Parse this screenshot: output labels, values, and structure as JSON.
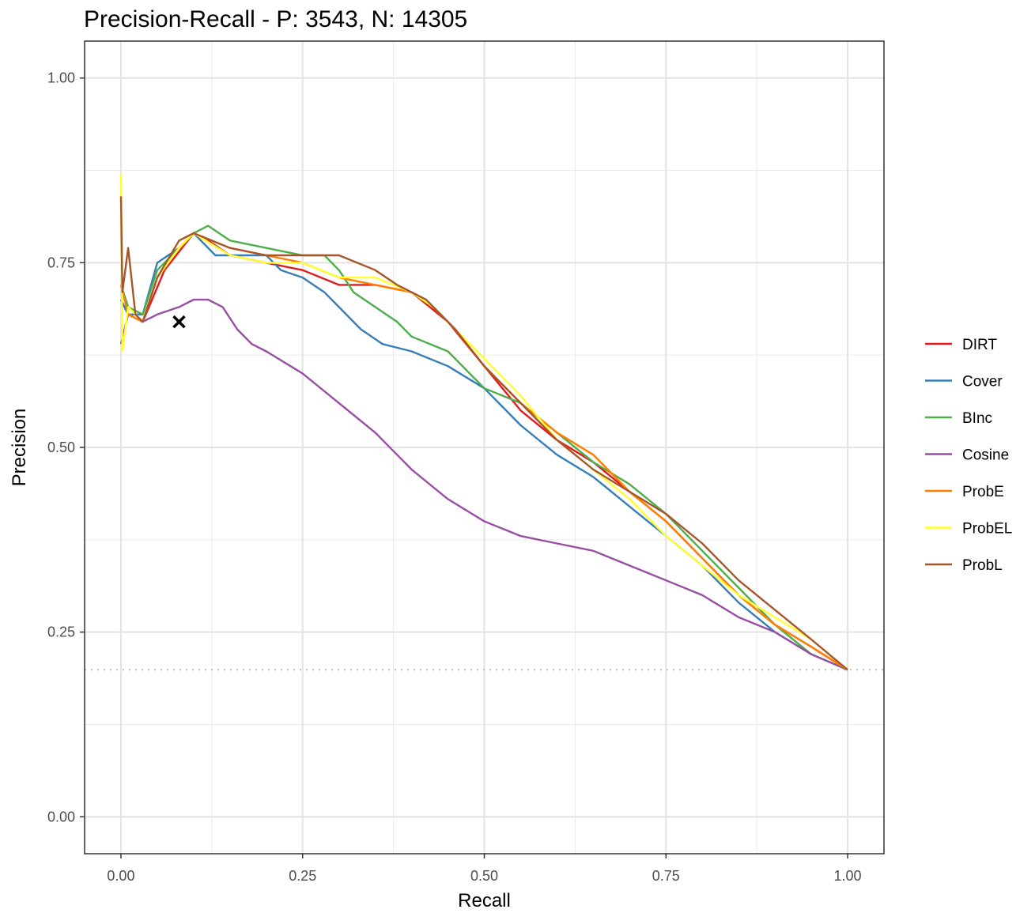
{
  "chart_data": {
    "type": "line",
    "title": "Precision-Recall - P: 3543, N: 14305",
    "xlabel": "Recall",
    "ylabel": "Precision",
    "xlim": [
      -0.05,
      1.05
    ],
    "ylim": [
      -0.05,
      1.05
    ],
    "x_ticks": [
      "0.00",
      "0.25",
      "0.50",
      "0.75",
      "1.00"
    ],
    "y_ticks": [
      "0.00",
      "0.25",
      "0.50",
      "0.75",
      "1.00"
    ],
    "grid": true,
    "legend_position": "right",
    "baseline_precision": 0.199,
    "marker": {
      "x": 0.08,
      "y": 0.67,
      "symbol": "x"
    },
    "series": [
      {
        "name": "DIRT",
        "color": "#e41a1c",
        "points": [
          [
            0.0,
            0.7
          ],
          [
            0.01,
            0.68
          ],
          [
            0.03,
            0.67
          ],
          [
            0.06,
            0.74
          ],
          [
            0.1,
            0.79
          ],
          [
            0.12,
            0.78
          ],
          [
            0.15,
            0.76
          ],
          [
            0.2,
            0.75
          ],
          [
            0.25,
            0.74
          ],
          [
            0.3,
            0.72
          ],
          [
            0.35,
            0.72
          ],
          [
            0.4,
            0.71
          ],
          [
            0.45,
            0.67
          ],
          [
            0.5,
            0.61
          ],
          [
            0.55,
            0.55
          ],
          [
            0.6,
            0.51
          ],
          [
            0.65,
            0.48
          ],
          [
            0.7,
            0.44
          ],
          [
            0.75,
            0.4
          ],
          [
            0.8,
            0.35
          ],
          [
            0.85,
            0.3
          ],
          [
            0.9,
            0.26
          ],
          [
            0.95,
            0.23
          ],
          [
            1.0,
            0.199
          ]
        ]
      },
      {
        "name": "Cover",
        "color": "#377eb8",
        "points": [
          [
            0.0,
            0.7
          ],
          [
            0.01,
            0.68
          ],
          [
            0.03,
            0.68
          ],
          [
            0.05,
            0.75
          ],
          [
            0.08,
            0.77
          ],
          [
            0.1,
            0.79
          ],
          [
            0.13,
            0.76
          ],
          [
            0.15,
            0.76
          ],
          [
            0.2,
            0.76
          ],
          [
            0.22,
            0.74
          ],
          [
            0.25,
            0.73
          ],
          [
            0.28,
            0.71
          ],
          [
            0.3,
            0.69
          ],
          [
            0.33,
            0.66
          ],
          [
            0.36,
            0.64
          ],
          [
            0.4,
            0.63
          ],
          [
            0.45,
            0.61
          ],
          [
            0.5,
            0.58
          ],
          [
            0.55,
            0.53
          ],
          [
            0.6,
            0.49
          ],
          [
            0.65,
            0.46
          ],
          [
            0.7,
            0.42
          ],
          [
            0.75,
            0.38
          ],
          [
            0.8,
            0.34
          ],
          [
            0.85,
            0.29
          ],
          [
            0.9,
            0.25
          ],
          [
            0.95,
            0.22
          ],
          [
            1.0,
            0.199
          ]
        ]
      },
      {
        "name": "BInc",
        "color": "#4daf4a",
        "points": [
          [
            0.0,
            0.72
          ],
          [
            0.01,
            0.69
          ],
          [
            0.03,
            0.68
          ],
          [
            0.05,
            0.74
          ],
          [
            0.08,
            0.77
          ],
          [
            0.1,
            0.79
          ],
          [
            0.12,
            0.8
          ],
          [
            0.15,
            0.78
          ],
          [
            0.2,
            0.77
          ],
          [
            0.25,
            0.76
          ],
          [
            0.28,
            0.76
          ],
          [
            0.3,
            0.74
          ],
          [
            0.32,
            0.71
          ],
          [
            0.35,
            0.69
          ],
          [
            0.38,
            0.67
          ],
          [
            0.4,
            0.65
          ],
          [
            0.45,
            0.63
          ],
          [
            0.5,
            0.58
          ],
          [
            0.55,
            0.56
          ],
          [
            0.6,
            0.52
          ],
          [
            0.65,
            0.48
          ],
          [
            0.7,
            0.45
          ],
          [
            0.75,
            0.41
          ],
          [
            0.8,
            0.36
          ],
          [
            0.85,
            0.31
          ],
          [
            0.9,
            0.26
          ],
          [
            0.95,
            0.22
          ],
          [
            1.0,
            0.199
          ]
        ]
      },
      {
        "name": "Cosine",
        "color": "#984ea3",
        "points": [
          [
            0.0,
            0.64
          ],
          [
            0.01,
            0.68
          ],
          [
            0.03,
            0.67
          ],
          [
            0.05,
            0.68
          ],
          [
            0.08,
            0.69
          ],
          [
            0.1,
            0.7
          ],
          [
            0.12,
            0.7
          ],
          [
            0.14,
            0.69
          ],
          [
            0.16,
            0.66
          ],
          [
            0.18,
            0.64
          ],
          [
            0.2,
            0.63
          ],
          [
            0.25,
            0.6
          ],
          [
            0.3,
            0.56
          ],
          [
            0.35,
            0.52
          ],
          [
            0.4,
            0.47
          ],
          [
            0.45,
            0.43
          ],
          [
            0.5,
            0.4
          ],
          [
            0.55,
            0.38
          ],
          [
            0.6,
            0.37
          ],
          [
            0.65,
            0.36
          ],
          [
            0.7,
            0.34
          ],
          [
            0.75,
            0.32
          ],
          [
            0.8,
            0.3
          ],
          [
            0.85,
            0.27
          ],
          [
            0.9,
            0.25
          ],
          [
            0.95,
            0.22
          ],
          [
            1.0,
            0.199
          ]
        ]
      },
      {
        "name": "ProbE",
        "color": "#ff7f00",
        "points": [
          [
            0.0,
            0.72
          ],
          [
            0.01,
            0.68
          ],
          [
            0.03,
            0.67
          ],
          [
            0.05,
            0.73
          ],
          [
            0.08,
            0.77
          ],
          [
            0.1,
            0.79
          ],
          [
            0.15,
            0.77
          ],
          [
            0.2,
            0.76
          ],
          [
            0.25,
            0.75
          ],
          [
            0.3,
            0.73
          ],
          [
            0.35,
            0.72
          ],
          [
            0.4,
            0.71
          ],
          [
            0.43,
            0.69
          ],
          [
            0.46,
            0.66
          ],
          [
            0.5,
            0.61
          ],
          [
            0.55,
            0.56
          ],
          [
            0.6,
            0.52
          ],
          [
            0.65,
            0.49
          ],
          [
            0.7,
            0.44
          ],
          [
            0.75,
            0.4
          ],
          [
            0.8,
            0.35
          ],
          [
            0.85,
            0.3
          ],
          [
            0.9,
            0.26
          ],
          [
            0.95,
            0.23
          ],
          [
            1.0,
            0.199
          ]
        ]
      },
      {
        "name": "ProbEL",
        "color": "#ffff33",
        "points": [
          [
            0.0,
            0.87
          ],
          [
            0.002,
            0.63
          ],
          [
            0.01,
            0.69
          ],
          [
            0.03,
            0.67
          ],
          [
            0.05,
            0.73
          ],
          [
            0.08,
            0.77
          ],
          [
            0.1,
            0.79
          ],
          [
            0.15,
            0.76
          ],
          [
            0.2,
            0.75
          ],
          [
            0.25,
            0.75
          ],
          [
            0.3,
            0.73
          ],
          [
            0.35,
            0.73
          ],
          [
            0.4,
            0.71
          ],
          [
            0.43,
            0.69
          ],
          [
            0.46,
            0.66
          ],
          [
            0.5,
            0.62
          ],
          [
            0.55,
            0.57
          ],
          [
            0.6,
            0.51
          ],
          [
            0.65,
            0.47
          ],
          [
            0.7,
            0.43
          ],
          [
            0.75,
            0.38
          ],
          [
            0.8,
            0.34
          ],
          [
            0.85,
            0.3
          ],
          [
            0.9,
            0.27
          ],
          [
            0.95,
            0.24
          ],
          [
            1.0,
            0.199
          ]
        ]
      },
      {
        "name": "ProbL",
        "color": "#a65628",
        "points": [
          [
            0.0,
            0.84
          ],
          [
            0.002,
            0.71
          ],
          [
            0.01,
            0.77
          ],
          [
            0.02,
            0.68
          ],
          [
            0.03,
            0.67
          ],
          [
            0.05,
            0.73
          ],
          [
            0.08,
            0.78
          ],
          [
            0.1,
            0.79
          ],
          [
            0.15,
            0.77
          ],
          [
            0.2,
            0.76
          ],
          [
            0.25,
            0.76
          ],
          [
            0.3,
            0.76
          ],
          [
            0.35,
            0.74
          ],
          [
            0.38,
            0.72
          ],
          [
            0.42,
            0.7
          ],
          [
            0.46,
            0.66
          ],
          [
            0.5,
            0.61
          ],
          [
            0.55,
            0.56
          ],
          [
            0.6,
            0.51
          ],
          [
            0.65,
            0.47
          ],
          [
            0.7,
            0.44
          ],
          [
            0.75,
            0.41
          ],
          [
            0.8,
            0.37
          ],
          [
            0.85,
            0.32
          ],
          [
            0.9,
            0.28
          ],
          [
            0.95,
            0.24
          ],
          [
            1.0,
            0.199
          ]
        ]
      }
    ]
  }
}
